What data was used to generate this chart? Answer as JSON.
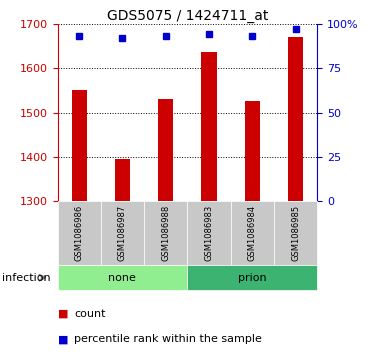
{
  "title": "GDS5075 / 1424711_at",
  "samples": [
    "GSM1086986",
    "GSM1086987",
    "GSM1086988",
    "GSM1086983",
    "GSM1086984",
    "GSM1086985"
  ],
  "counts": [
    1550,
    1395,
    1530,
    1635,
    1525,
    1670
  ],
  "percentile_ranks": [
    93,
    92,
    93,
    94,
    93,
    97
  ],
  "groups": [
    "none",
    "none",
    "none",
    "prion",
    "prion",
    "prion"
  ],
  "bar_color": "#CC0000",
  "dot_color": "#0000CC",
  "ylim_left": [
    1300,
    1700
  ],
  "ylim_right": [
    0,
    100
  ],
  "yticks_left": [
    1300,
    1400,
    1500,
    1600,
    1700
  ],
  "yticks_right": [
    0,
    25,
    50,
    75,
    100
  ],
  "yticklabels_right": [
    "0",
    "25",
    "50",
    "75",
    "100%"
  ],
  "left_axis_color": "#CC0000",
  "right_axis_color": "#0000CC",
  "label_count": "count",
  "label_pct": "percentile rank within the sample",
  "infection_label": "infection",
  "bar_width": 0.35,
  "sample_box_color": "#C8C8C8",
  "none_group_color": "#90EE90",
  "prion_group_color": "#3CB371",
  "title_fontsize": 10,
  "tick_fontsize": 8,
  "sample_fontsize": 6,
  "legend_fontsize": 8
}
